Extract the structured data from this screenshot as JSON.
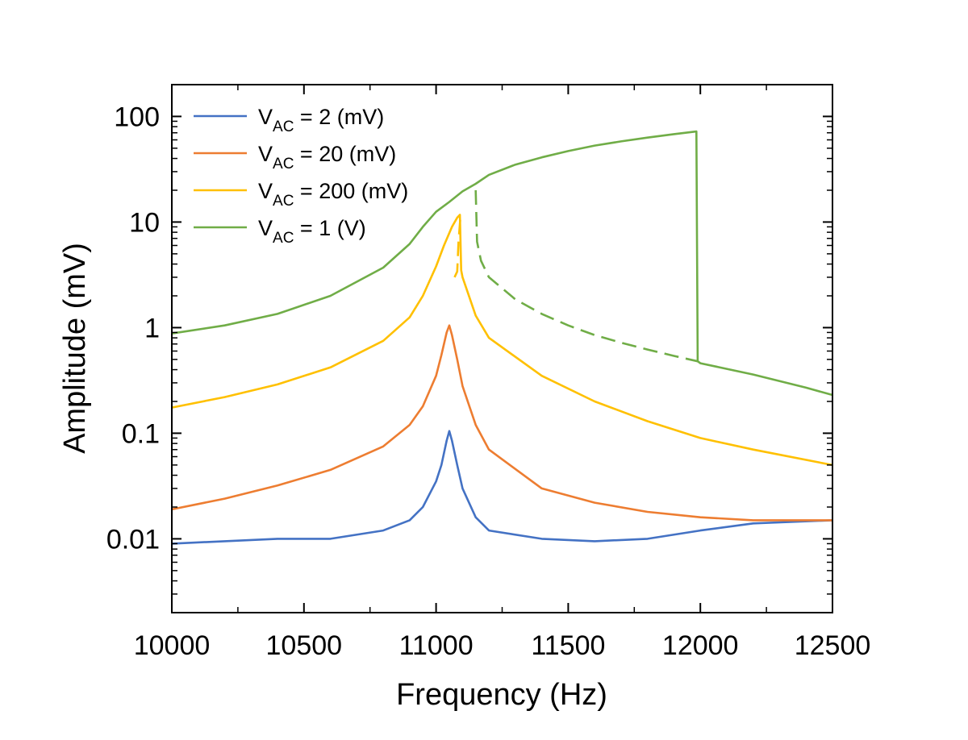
{
  "chart_data": {
    "type": "line",
    "title": "",
    "xlabel": "Frequency (Hz)",
    "ylabel": "Amplitude (mV)",
    "xlim": [
      10000,
      12500
    ],
    "ylim": [
      0.002,
      200
    ],
    "y_scale": "log",
    "x_ticks": [
      10000,
      10500,
      11000,
      11500,
      12000,
      12500
    ],
    "x_tick_labels": [
      "10000",
      "10500",
      "11000",
      "11500",
      "12000",
      "12500"
    ],
    "y_ticks": [
      0.01,
      0.1,
      1,
      10,
      100
    ],
    "y_tick_labels": [
      "0.01",
      "0.1",
      "1",
      "10",
      "100"
    ],
    "grid": false,
    "legend_position": "top-left",
    "series": [
      {
        "name": "V_AC = 2 (mV)",
        "legend": {
          "prefix": "V",
          "sub": "AC",
          "suffix": " = 2 (mV)"
        },
        "color": "#4472C4",
        "line_style": "solid",
        "x": [
          10000,
          10200,
          10400,
          10600,
          10800,
          10900,
          10950,
          11000,
          11020,
          11040,
          11050,
          11060,
          11080,
          11100,
          11150,
          11200,
          11400,
          11600,
          11800,
          12000,
          12200,
          12500
        ],
        "y": [
          0.009,
          0.0095,
          0.01,
          0.01,
          0.012,
          0.015,
          0.02,
          0.035,
          0.05,
          0.085,
          0.105,
          0.085,
          0.05,
          0.03,
          0.016,
          0.012,
          0.01,
          0.0095,
          0.01,
          0.012,
          0.014,
          0.015
        ]
      },
      {
        "name": "V_AC = 20 (mV)",
        "legend": {
          "prefix": "V",
          "sub": "AC",
          "suffix": " = 20 (mV)"
        },
        "color": "#ED7D31",
        "line_style": "solid",
        "x": [
          10000,
          10200,
          10400,
          10600,
          10800,
          10900,
          10950,
          11000,
          11020,
          11040,
          11050,
          11060,
          11080,
          11100,
          11150,
          11200,
          11400,
          11600,
          11800,
          12000,
          12200,
          12500
        ],
        "y": [
          0.019,
          0.024,
          0.032,
          0.045,
          0.075,
          0.12,
          0.18,
          0.35,
          0.55,
          0.9,
          1.05,
          0.85,
          0.5,
          0.28,
          0.12,
          0.07,
          0.03,
          0.022,
          0.018,
          0.016,
          0.015,
          0.015
        ]
      },
      {
        "name": "V_AC = 200 (mV)",
        "legend": {
          "prefix": "V",
          "sub": "AC",
          "suffix": " = 200 (mV)"
        },
        "color": "#FFC000",
        "line_style": "solid",
        "x": [
          10000,
          10200,
          10400,
          10600,
          10800,
          10900,
          10950,
          11000,
          11030,
          11060,
          11080,
          11090,
          11095,
          11100,
          11150,
          11200,
          11400,
          11600,
          11800,
          12000,
          12200,
          12500
        ],
        "y": [
          0.175,
          0.22,
          0.29,
          0.42,
          0.75,
          1.25,
          2.0,
          3.8,
          6.0,
          9.0,
          11.0,
          11.7,
          3.5,
          3.0,
          1.3,
          0.8,
          0.35,
          0.2,
          0.13,
          0.09,
          0.07,
          0.05
        ]
      },
      {
        "name": "V_AC = 1 (V)",
        "legend": {
          "prefix": "V",
          "sub": "AC",
          "suffix": " = 1 (V)"
        },
        "color": "#70AD47",
        "line_style": "solid",
        "x": [
          10000,
          10200,
          10400,
          10600,
          10800,
          10900,
          10950,
          11000,
          11050,
          11100,
          11150,
          11200,
          11300,
          11400,
          11500,
          11600,
          11700,
          11800,
          11900,
          11985,
          11990,
          12000,
          12200,
          12400,
          12500
        ],
        "y": [
          0.88,
          1.05,
          1.35,
          2.0,
          3.7,
          6.2,
          9.0,
          12.5,
          15.5,
          19.5,
          23.0,
          28.0,
          35.0,
          41.0,
          47.0,
          53.0,
          58.0,
          63.0,
          68.0,
          72.0,
          0.48,
          0.46,
          0.36,
          0.27,
          0.23
        ]
      },
      {
        "name": "",
        "color": "#70AD47",
        "line_style": "dashed",
        "x": [
          11150,
          11155,
          11170,
          11200,
          11300,
          11400,
          11500,
          11600,
          11700,
          11800,
          11900,
          11990
        ],
        "y": [
          20.0,
          6.5,
          4.3,
          3.0,
          1.85,
          1.35,
          1.05,
          0.85,
          0.72,
          0.62,
          0.54,
          0.48
        ]
      },
      {
        "name": "",
        "color": "#FFC000",
        "line_style": "dashed",
        "x": [
          11070,
          11080,
          11085,
          11092
        ],
        "y": [
          3.0,
          3.4,
          6.5,
          11.0
        ]
      }
    ]
  }
}
